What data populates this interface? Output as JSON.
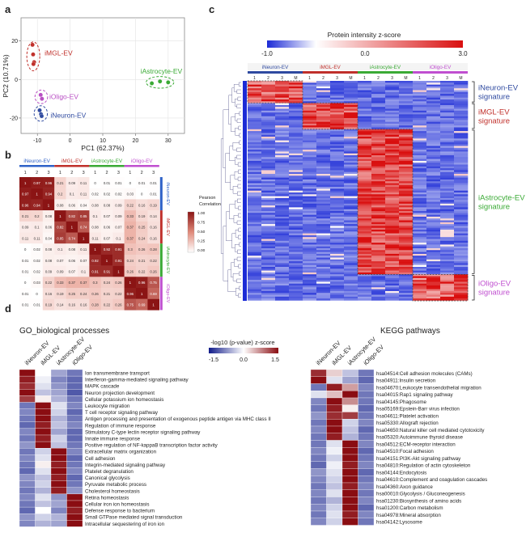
{
  "panels": {
    "a": {
      "letter": "a",
      "xlabel": "PC1 (62.37%)",
      "ylabel": "PC2 (10.71%)",
      "xticks": [
        "-10",
        "0",
        "10",
        "20",
        "30"
      ],
      "yticks": [
        "-20",
        "0",
        "20"
      ],
      "groups": [
        {
          "name": "iMGL-EV",
          "color": "#c0302b"
        },
        {
          "name": "iAstrocyte-EV",
          "color": "#3aaa35"
        },
        {
          "name": "iOligo-EV",
          "color": "#b94fc4"
        },
        {
          "name": "iNeuron-EV",
          "color": "#2f4aa0"
        }
      ]
    },
    "b": {
      "letter": "b",
      "groups": [
        "iNeuron-EV",
        "iMGL-EV",
        "iAstrocyte-EV",
        "iOligo-EV"
      ],
      "group_colors": [
        "#2f62c8",
        "#c0302b",
        "#3aaa35",
        "#c04fd0"
      ],
      "legend_title": "Pearson Correlation",
      "legend_ticks": [
        "1.00",
        "0.75",
        "0.50",
        "0.25",
        "0.00"
      ],
      "rep_labels": [
        "1",
        "2",
        "3",
        "1",
        "2",
        "3",
        "1",
        "2",
        "3",
        "1",
        "2",
        "3"
      ]
    },
    "c": {
      "letter": "c",
      "scale_title": "Protein intensity z-score",
      "scale_ticks": [
        "-1.0",
        "0.0",
        "3.0"
      ],
      "column_groups": [
        "iNeuron-EV",
        "iMGL-EV",
        "iAstrocyte-EV",
        "iOligo-EV"
      ],
      "rep_labels": [
        "1",
        "2",
        "3",
        "M",
        "1",
        "2",
        "3",
        "M",
        "1",
        "2",
        "3",
        "M",
        "1",
        "2",
        "3",
        "M"
      ],
      "signatures": [
        {
          "line1": "iNeuron-EV",
          "line2": "signature",
          "color": "#2f4aa0"
        },
        {
          "line1": "iMGL-EV",
          "line2": "signature",
          "color": "#c0302b"
        },
        {
          "line1": "iAstrocyte-EV",
          "line2": "signature",
          "color": "#3aaa35"
        },
        {
          "line1": "iOligo-EV",
          "line2": "signature",
          "color": "#c04fd0"
        }
      ]
    },
    "d": {
      "letter": "d",
      "go_title": "GO_biological processes",
      "kegg_title": "KEGG pathways",
      "scale_title": "-log10 (p-value) z-score",
      "scale_ticks": [
        "-1.5",
        "0.0",
        "1.5"
      ],
      "columns": [
        "iNeuron-EV",
        "iMGL-EV",
        "iAstrocyte-EV",
        "iOligo-EV"
      ],
      "go_terms": [
        "Ion transmembrane transport",
        "Interferon-gamma-mediated signaling pathway",
        "MAPK cascade",
        "Neuron projection development",
        "Cellular potassium ion homeostasis",
        "Leukocyte migration",
        "T cell receptor signaling pathway",
        "Antigen processing and presentation of exogenous peptide antigen via MHC class II",
        "Regulation of immune response",
        "Stimulatory C-type lectin receptor signaling pathway",
        "Innate immune response",
        "Positive regulation of NF-kappaB transcription factor activity",
        "Extracellular matrix organization",
        "Cell adhesion",
        "Integrin-mediated signaling pathway",
        "Platelet degranulation",
        "Canonical glycolysis",
        "Pyruvate metabolic process",
        "Cholesterol homeostasis",
        "Retina homeostasis",
        "Cellular iron ion homeostasis",
        "Defense response to bacterium",
        "Small GTPase mediated signal transduction",
        "Intracellular sequestering of iron ion"
      ],
      "kegg_terms": [
        "hsa04514:Cell adhesion molecules (CAMs)",
        "hsa04911:Insulin secretion",
        "hsa04670:Leukocyte transendothelial migration",
        "hsa04015:Rap1 signaling pathway",
        "hsa04145:Phagosome",
        "hsa05169:Epstein-Barr virus infection",
        "hsa04611:Platelet activation",
        "hsa05330:Allograft rejection",
        "hsa04650:Natural killer cell mediated cytotoxicity",
        "hsa05320:Autoimmune thyroid disease",
        "hsa04512:ECM-receptor interaction",
        "hsa04510:Focal adhesion",
        "hsa04151:PI3K-Akt signaling pathway",
        "hsa04810:Regulation of actin cytoskeleton",
        "hsa04144:Endocytosis",
        "hsa04610:Complement and coagulation cascades",
        "hsa04360:Axon guidance",
        "hsa00010:Glycolysis / Gluconeogenesis",
        "hsa01230:Biosynthesis of amino acids",
        "hsa01200:Carbon metabolism",
        "hsa04978:Mineral absorption",
        "hsa04142:Lysosome"
      ]
    }
  },
  "chart_data": [
    {
      "type": "scatter",
      "xlabel": "PC1 (62.37%)",
      "ylabel": "PC2 (10.71%)",
      "xlim": [
        -15,
        35
      ],
      "ylim": [
        -28,
        32
      ],
      "series": [
        {
          "name": "iMGL-EV",
          "points": [
            [
              -11.5,
              18
            ],
            [
              -11.3,
              13
            ],
            [
              -11.0,
              9
            ],
            [
              -11.2,
              8
            ]
          ]
        },
        {
          "name": "iAstrocyte-EV",
          "points": [
            [
              25,
              -2
            ],
            [
              27.5,
              -1
            ],
            [
              30,
              -1.5
            ]
          ]
        },
        {
          "name": "iOligo-EV",
          "points": [
            [
              -9,
              -8
            ],
            [
              -8.6,
              -10
            ]
          ]
        },
        {
          "name": "iNeuron-EV",
          "points": [
            [
              -9.3,
              -16
            ],
            [
              -8.9,
              -18
            ],
            [
              -8.7,
              -19
            ]
          ]
        }
      ]
    },
    {
      "type": "heatmap",
      "legend_title": "Pearson Correlation",
      "value_range": [
        0.0,
        1.0
      ],
      "row_labels": [
        "iNeuron-EV 1",
        "iNeuron-EV 2",
        "iNeuron-EV 3",
        "iMGL-EV 1",
        "iMGL-EV 2",
        "iMGL-EV 3",
        "iAstrocyte-EV 1",
        "iAstrocyte-EV 2",
        "iAstrocyte-EV 3",
        "iOligo-EV 1",
        "iOligo-EV 2",
        "iOligo-EV 3"
      ],
      "col_labels": [
        "iNeuron-EV 1",
        "iNeuron-EV 2",
        "iNeuron-EV 3",
        "iMGL-EV 1",
        "iMGL-EV 2",
        "iMGL-EV 3",
        "iAstrocyte-EV 1",
        "iAstrocyte-EV 2",
        "iAstrocyte-EV 3",
        "iOligo-EV 1",
        "iOligo-EV 2",
        "iOligo-EV 3"
      ],
      "values": [
        [
          1,
          0.97,
          0.96,
          0.21,
          0.09,
          0.11,
          0,
          0.01,
          0.01,
          0,
          0.01,
          0.01
        ],
        [
          0.97,
          1,
          0.94,
          0.2,
          0.1,
          0.11,
          0.02,
          0.02,
          0.02,
          0.03,
          0,
          0.01
        ],
        [
          0.96,
          0.94,
          1,
          0.08,
          0.06,
          0.04,
          0.08,
          0.08,
          0.09,
          0.22,
          0.16,
          0.19
        ],
        [
          0.21,
          0.2,
          0.08,
          1,
          0.82,
          0.85,
          0.1,
          0.07,
          0.09,
          0.33,
          0.19,
          0.14
        ],
        [
          0.09,
          0.1,
          0.06,
          0.82,
          1,
          0.74,
          0.08,
          0.06,
          0.07,
          0.37,
          0.25,
          0.16
        ],
        [
          0.11,
          0.11,
          0.04,
          0.85,
          0.74,
          1,
          0.11,
          0.07,
          0.1,
          0.37,
          0.24,
          0.16
        ],
        [
          0,
          0.02,
          0.08,
          0.1,
          0.08,
          0.11,
          1,
          0.92,
          0.91,
          0.3,
          0.26,
          0.28
        ],
        [
          0.01,
          0.02,
          0.08,
          0.07,
          0.06,
          0.07,
          0.92,
          1,
          0.91,
          0.24,
          0.21,
          0.22
        ],
        [
          0.01,
          0.02,
          0.09,
          0.09,
          0.07,
          0.1,
          0.91,
          0.91,
          1,
          0.26,
          0.22,
          0.26
        ],
        [
          0,
          0.03,
          0.22,
          0.33,
          0.37,
          0.37,
          0.3,
          0.24,
          0.26,
          1,
          0.96,
          0.75
        ],
        [
          0.01,
          0,
          0.16,
          0.19,
          0.25,
          0.24,
          0.26,
          0.21,
          0.22,
          0.96,
          1,
          0.69
        ],
        [
          0.01,
          0.01,
          0.19,
          0.14,
          0.16,
          0.16,
          0.28,
          0.22,
          0.26,
          0.75,
          0.69,
          1
        ]
      ]
    }
  ]
}
